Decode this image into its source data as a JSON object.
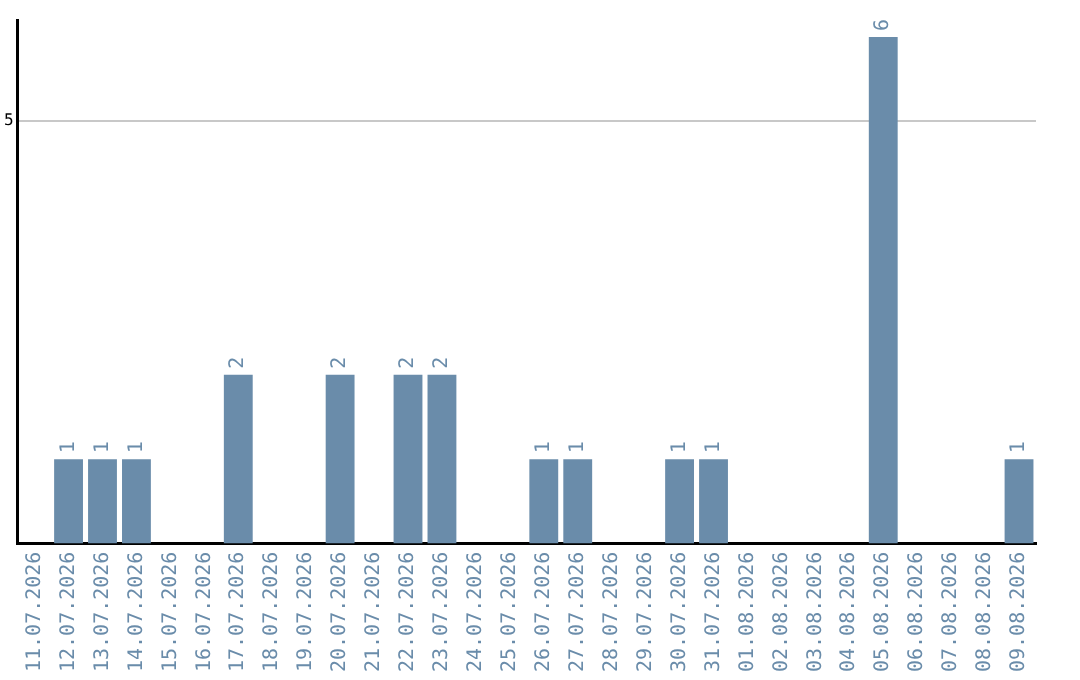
{
  "chart_data": {
    "type": "bar",
    "categories": [
      "11.07.2026",
      "12.07.2026",
      "13.07.2026",
      "14.07.2026",
      "15.07.2026",
      "16.07.2026",
      "17.07.2026",
      "18.07.2026",
      "19.07.2026",
      "20.07.2026",
      "21.07.2026",
      "22.07.2026",
      "23.07.2026",
      "24.07.2026",
      "25.07.2026",
      "26.07.2026",
      "27.07.2026",
      "28.07.2026",
      "29.07.2026",
      "30.07.2026",
      "31.07.2026",
      "01.08.2026",
      "02.08.2026",
      "03.08.2026",
      "04.08.2026",
      "05.08.2026",
      "06.08.2026",
      "07.08.2026",
      "08.08.2026",
      "09.08.2026"
    ],
    "values": [
      0,
      1,
      1,
      1,
      0,
      0,
      2,
      0,
      0,
      2,
      0,
      2,
      2,
      0,
      0,
      1,
      1,
      0,
      0,
      1,
      1,
      0,
      0,
      0,
      0,
      6,
      0,
      0,
      0,
      1
    ],
    "value_labels": [
      null,
      "1",
      "1",
      "1",
      null,
      null,
      "2",
      null,
      null,
      "2",
      null,
      "2",
      "2",
      null,
      null,
      "1",
      "1",
      null,
      null,
      "1",
      "1",
      null,
      null,
      null,
      null,
      "6",
      null,
      null,
      null,
      "1"
    ],
    "color": "#6a8caa",
    "ylim": [
      0,
      6.2
    ],
    "yticks": [
      5
    ],
    "grid": "y",
    "legend": false
  }
}
